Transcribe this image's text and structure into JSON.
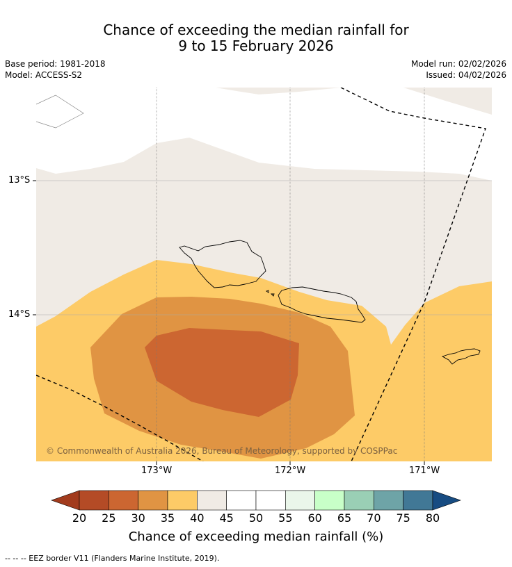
{
  "title": {
    "line1": "Chance of exceeding the median rainfall for",
    "line2": "9 to 15 February 2026"
  },
  "meta": {
    "base_period": "Base period: 1981-2018",
    "model": "Model: ACCESS-S2",
    "model_run": "Model run: 02/02/2026",
    "issued": "Issued: 04/02/2026"
  },
  "axes": {
    "lat_labels": [
      "13°S",
      "14°S"
    ],
    "lon_labels": [
      "173°W",
      "172°W",
      "171°W"
    ]
  },
  "copyright": "© Commonwealth of Australia 2026, Bureau of Meteorology, supported by COSPPac",
  "colorbar": {
    "ticks": [
      "20",
      "25",
      "30",
      "35",
      "40",
      "45",
      "50",
      "55",
      "60",
      "65",
      "70",
      "75",
      "80"
    ],
    "colors": [
      "#a23b1d",
      "#b44b26",
      "#cc6631",
      "#e09443",
      "#fdcb67",
      "#f0ebe5",
      "#ffffff",
      "#ffffff",
      "#eaf6ea",
      "#c8ffc8",
      "#9acfb5",
      "#6ea4a7",
      "#417896",
      "#174c82"
    ],
    "label": "Chance of exceeding median rainfall (%)"
  },
  "footnote": "--  --  -- EEZ border V11 (Flanders Marine Institute, 2019)."
}
